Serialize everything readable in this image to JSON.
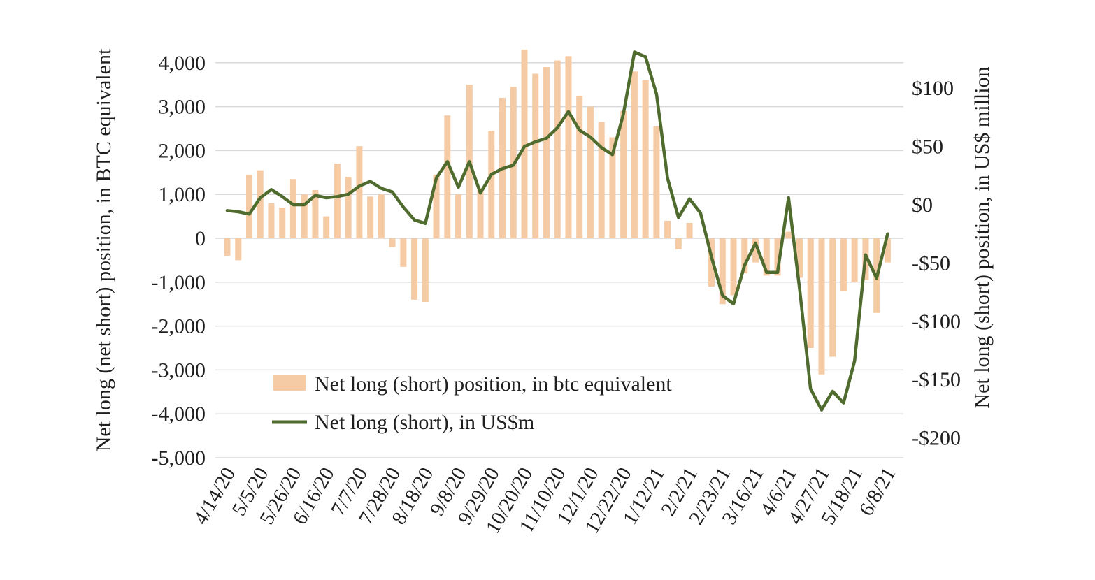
{
  "chart_data": {
    "type": "combo",
    "background": "#ffffff",
    "grid": true,
    "grid_color": "#d9d9d9",
    "text_color": "#1f1f1f",
    "x": [
      "4/14/20",
      "4/21/20",
      "4/28/20",
      "5/5/20",
      "5/12/20",
      "5/19/20",
      "5/26/20",
      "6/2/20",
      "6/9/20",
      "6/16/20",
      "6/23/20",
      "6/30/20",
      "7/7/20",
      "7/14/20",
      "7/21/20",
      "7/28/20",
      "8/4/20",
      "8/11/20",
      "8/18/20",
      "8/25/20",
      "9/1/20",
      "9/8/20",
      "9/15/20",
      "9/22/20",
      "9/29/20",
      "10/6/20",
      "10/13/20",
      "10/20/20",
      "10/27/20",
      "11/3/20",
      "11/10/20",
      "11/17/20",
      "11/24/20",
      "12/1/20",
      "12/8/20",
      "12/15/20",
      "12/22/20",
      "12/29/20",
      "1/5/21",
      "1/12/21",
      "1/19/21",
      "1/26/21",
      "2/2/21",
      "2/9/21",
      "2/16/21",
      "2/23/21",
      "3/2/21",
      "3/9/21",
      "3/16/21",
      "3/23/21",
      "3/30/21",
      "4/6/21",
      "4/13/21",
      "4/20/21",
      "4/27/21",
      "5/4/21",
      "5/11/21",
      "5/18/21",
      "5/25/21",
      "6/1/21",
      "6/8/21"
    ],
    "x_tick_labels": [
      "4/14/20",
      "5/5/20",
      "5/26/20",
      "6/16/20",
      "7/7/20",
      "7/28/20",
      "8/18/20",
      "9/8/20",
      "9/29/20",
      "10/20/20",
      "11/10/20",
      "12/1/20",
      "12/22/20",
      "1/12/21",
      "2/2/21",
      "2/23/21",
      "3/16/21",
      "4/6/21",
      "4/27/21",
      "5/18/21",
      "6/8/21"
    ],
    "x_tick_every": 3,
    "series": [
      {
        "name": "Net long (short) position, in btc equivalent",
        "type": "bar",
        "axis": "left",
        "color": "#f5cba5",
        "values": [
          -400,
          -500,
          1450,
          1550,
          800,
          700,
          1350,
          1000,
          1100,
          500,
          1700,
          1400,
          2100,
          950,
          1000,
          -200,
          -650,
          -1400,
          -1450,
          1450,
          2800,
          1000,
          3500,
          1150,
          2450,
          3200,
          3450,
          4300,
          3750,
          3900,
          4050,
          4150,
          3250,
          3000,
          2650,
          2300,
          2900,
          3800,
          3600,
          2550,
          400,
          -250,
          350,
          0,
          -1100,
          -1500,
          -1300,
          -800,
          -550,
          -850,
          -850,
          150,
          -900,
          -2500,
          -3100,
          -2700,
          -1200,
          -1000,
          -950,
          -1700,
          -550
        ]
      },
      {
        "name": "Net long (short), in US$m",
        "type": "line",
        "axis": "right",
        "color": "#4f6b2d",
        "values": [
          -5,
          -6,
          -8,
          6,
          13,
          7,
          0,
          0,
          8,
          6,
          7,
          9,
          16,
          20,
          14,
          11,
          -2,
          -13,
          -16,
          23,
          37,
          15,
          37,
          10,
          26,
          31,
          34,
          50,
          54,
          57,
          66,
          80,
          64,
          58,
          49,
          43,
          78,
          131,
          127,
          95,
          23,
          -11,
          5,
          -7,
          -45,
          -78,
          -85,
          -52,
          -33,
          -58,
          -58,
          6,
          -72,
          -158,
          -176,
          -160,
          -170,
          -134,
          -43,
          -63,
          -25
        ]
      }
    ],
    "left_axis": {
      "title": "Net long (net short) position, in BTC equivalent",
      "tick_values": [
        4000,
        3000,
        2000,
        1000,
        0,
        -1000,
        -2000,
        -3000,
        -4000,
        -5000
      ],
      "tick_labels": [
        "4,000",
        "3,000",
        "2,000",
        "1,000",
        "0",
        "-1,000",
        "-2,000",
        "-3,000",
        "-4,000",
        "-5,000"
      ],
      "range": [
        -5000,
        4000
      ]
    },
    "right_axis": {
      "title": "Net long (short) position, in US$ million",
      "tick_values": [
        100,
        50,
        0,
        -50,
        -100,
        -150,
        -200
      ],
      "tick_labels": [
        "$100",
        "$50",
        "$0",
        "-$50",
        "-$100",
        "-$150",
        "-$200"
      ],
      "range": [
        -200,
        125
      ]
    },
    "legend": {
      "position": "bottom-left-inside",
      "items": [
        {
          "label": "Net long (short) position, in btc equivalent",
          "swatch": "bar",
          "color": "#f5cba5"
        },
        {
          "label": "Net long (short), in US$m",
          "swatch": "line",
          "color": "#4f6b2d"
        }
      ]
    }
  }
}
